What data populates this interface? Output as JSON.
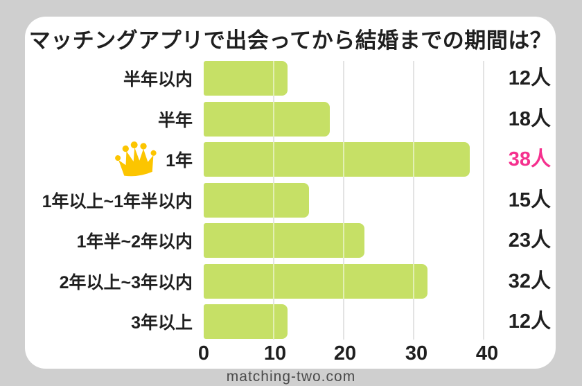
{
  "page": {
    "footer": "matching-two.com"
  },
  "chart_data": {
    "type": "bar",
    "orientation": "horizontal",
    "title": "マッチングアプリで出会ってから結婚までの期間は？",
    "categories": [
      "半年以内",
      "半年",
      "1年",
      "1年以上~1年半以内",
      "1年半~2年以内",
      "2年以上~3年以内",
      "3年以上"
    ],
    "values": [
      12,
      18,
      38,
      15,
      23,
      32,
      12
    ],
    "value_labels": [
      "12人",
      "18人",
      "38人",
      "15人",
      "23人",
      "32人",
      "12人"
    ],
    "highlight_index": 2,
    "highlight_icon": "crown-icon",
    "x_ticks": [
      "0",
      "10",
      "20",
      "30",
      "40"
    ],
    "xlim": [
      0,
      40
    ],
    "grid": "vertical",
    "legend": "none",
    "colors": {
      "background": "#cfcfcf",
      "card": "#ffffff",
      "bar": "#c6e066",
      "text": "#1f1f1f",
      "highlight_text": "#f5308e",
      "crown": "#fcc500",
      "gridline": "#e3e3e3",
      "footer_text": "#4a4a4a"
    }
  }
}
